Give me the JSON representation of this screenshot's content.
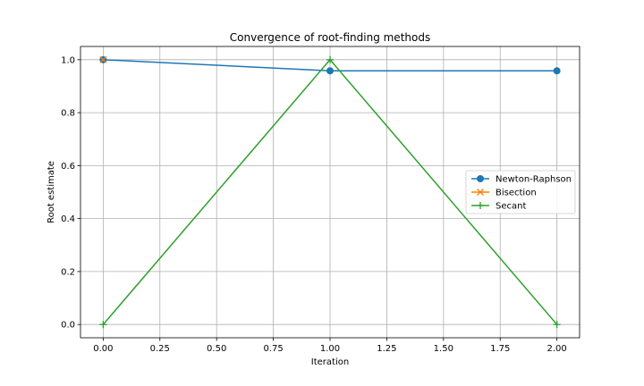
{
  "chart_data": {
    "type": "line",
    "title": "Convergence of root-finding methods",
    "xlabel": "Iteration",
    "ylabel": "Root estimate",
    "xlim": [
      -0.1,
      2.1
    ],
    "ylim": [
      -0.05,
      1.05
    ],
    "xticks": [
      0.0,
      0.25,
      0.5,
      0.75,
      1.0,
      1.25,
      1.5,
      1.75,
      2.0
    ],
    "xtick_labels": [
      "0.00",
      "0.25",
      "0.50",
      "0.75",
      "1.00",
      "1.25",
      "1.50",
      "1.75",
      "2.00"
    ],
    "yticks": [
      0.0,
      0.2,
      0.4,
      0.6,
      0.8,
      1.0
    ],
    "ytick_labels": [
      "0.0",
      "0.2",
      "0.4",
      "0.6",
      "0.8",
      "1.0"
    ],
    "grid": true,
    "legend_position": "center-right",
    "series": [
      {
        "name": "Newton-Raphson",
        "color": "#1f77b4",
        "marker": "circle",
        "x": [
          0,
          1,
          2
        ],
        "y": [
          1.0,
          0.958,
          0.958
        ]
      },
      {
        "name": "Bisection",
        "color": "#ff7f0e",
        "marker": "x",
        "x": [
          0
        ],
        "y": [
          1.0
        ]
      },
      {
        "name": "Secant",
        "color": "#2ca02c",
        "marker": "plus",
        "x": [
          0,
          1,
          2
        ],
        "y": [
          0.0,
          1.0,
          0.0
        ]
      }
    ]
  }
}
